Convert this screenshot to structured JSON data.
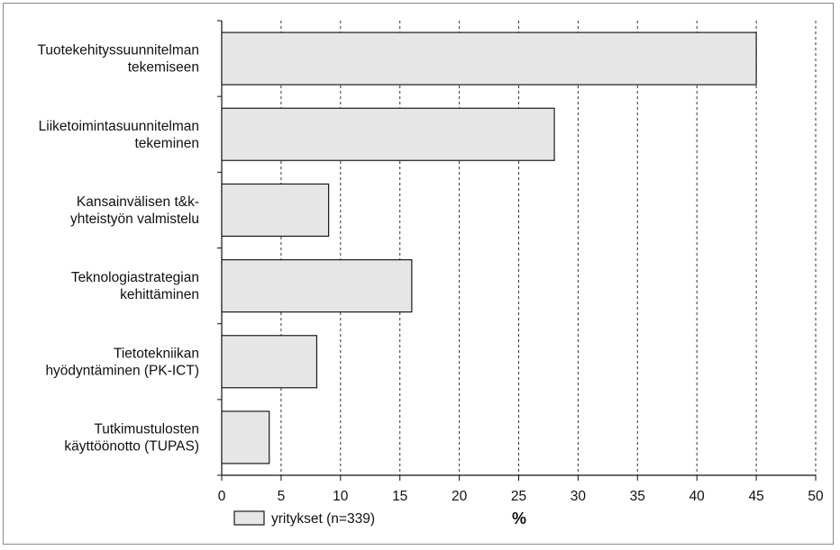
{
  "chart_data": {
    "type": "bar",
    "orientation": "horizontal",
    "categories": [
      [
        "Tuotekehityssuunnitelman",
        "tekemiseen"
      ],
      [
        "Liiketoimintasuunnitelman",
        "tekeminen"
      ],
      [
        "Kansainvälisen t&k-",
        "yhteistyön valmistelu"
      ],
      [
        "Teknologiastrategian",
        "kehittäminen"
      ],
      [
        "Tietotekniikan",
        "hyödyntäminen (PK-ICT)"
      ],
      [
        "Tutkimustulosten",
        "käyttöönotto (TUPAS)"
      ]
    ],
    "series": [
      {
        "name": "yritykset (n=339)",
        "values": [
          45,
          28,
          9,
          16,
          8,
          4
        ]
      }
    ],
    "xlim": [
      0,
      50
    ],
    "xticks": [
      0,
      5,
      10,
      15,
      20,
      25,
      30,
      35,
      40,
      45,
      50
    ],
    "xlabel": "%",
    "grid": "vertical dashed",
    "legend": "bottom-left",
    "colors": {
      "bar_fill": "#e6e6e6",
      "bar_stroke": "#1a1a1a",
      "grid": "#333333"
    }
  }
}
